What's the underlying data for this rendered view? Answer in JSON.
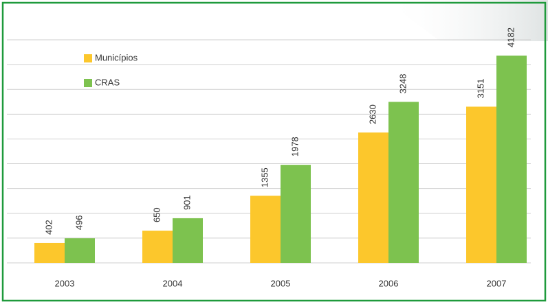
{
  "chart_data": {
    "type": "bar",
    "categories": [
      "2003",
      "2004",
      "2005",
      "2006",
      "2007"
    ],
    "series": [
      {
        "name": "Municípios",
        "color": "#fcc72c",
        "values": [
          402,
          650,
          1355,
          2630,
          3151
        ]
      },
      {
        "name": "CRAS",
        "color": "#7dc24f",
        "values": [
          496,
          901,
          1978,
          3248,
          4182
        ]
      }
    ],
    "ylim": [
      0,
      4500
    ],
    "yticks": [
      0,
      500,
      1000,
      1500,
      2000,
      2500,
      3000,
      3500,
      4000,
      4500
    ],
    "grid": true,
    "legend": "top-left"
  }
}
